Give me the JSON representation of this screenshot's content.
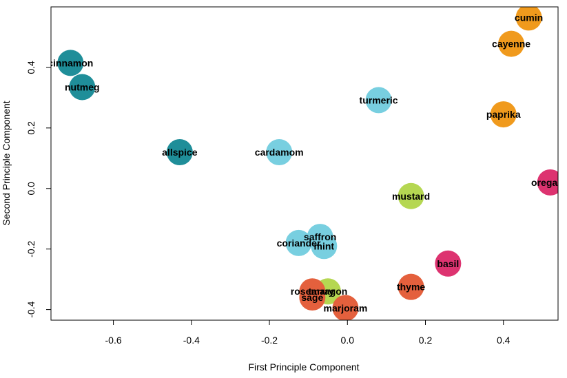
{
  "chart_data": {
    "type": "scatter",
    "title": "",
    "xlabel": "First Principle Component",
    "ylabel": "Second Principle Component",
    "xlim": [
      -0.76,
      0.54
    ],
    "ylim": [
      -0.435,
      0.6
    ],
    "xticks": [
      -0.6,
      -0.4,
      -0.2,
      0.0,
      0.2,
      0.4
    ],
    "xtick_labels": [
      "-0.6",
      "-0.4",
      "-0.2",
      "0.0",
      "0.2",
      "0.4"
    ],
    "yticks": [
      -0.4,
      -0.2,
      0.0,
      0.2,
      0.4
    ],
    "ytick_labels": [
      "-0.4",
      "-0.2",
      "0.0",
      "0.2",
      "0.4"
    ],
    "grid": false,
    "legend": "none",
    "colors": {
      "teal": "#1F8E99",
      "lightblue": "#78CFE0",
      "orange": "#F09A1D",
      "lime": "#B5D752",
      "red": "#E4603D",
      "crimson": "#DD3370"
    },
    "points": [
      {
        "name": "cumin",
        "x": 0.465,
        "y": 0.565,
        "color": "#F09A1D"
      },
      {
        "name": "cayenne",
        "x": 0.42,
        "y": 0.478,
        "color": "#F09A1D"
      },
      {
        "name": "paprika",
        "x": 0.4,
        "y": 0.245,
        "color": "#F09A1D"
      },
      {
        "name": "cinnamon",
        "x": -0.71,
        "y": 0.415,
        "color": "#1F8E99"
      },
      {
        "name": "nutmeg",
        "x": -0.68,
        "y": 0.335,
        "color": "#1F8E99"
      },
      {
        "name": "allspice",
        "x": -0.43,
        "y": 0.12,
        "color": "#1F8E99"
      },
      {
        "name": "turmeric",
        "x": 0.08,
        "y": 0.292,
        "color": "#78CFE0"
      },
      {
        "name": "cardamom",
        "x": -0.175,
        "y": 0.12,
        "color": "#78CFE0"
      },
      {
        "name": "saffron",
        "x": -0.07,
        "y": -0.16,
        "color": "#78CFE0"
      },
      {
        "name": "coriander",
        "x": -0.125,
        "y": -0.18,
        "color": "#78CFE0"
      },
      {
        "name": "mint",
        "x": -0.06,
        "y": -0.19,
        "color": "#78CFE0"
      },
      {
        "name": "oregano",
        "x": 0.52,
        "y": 0.02,
        "color": "#DD3370"
      },
      {
        "name": "basil",
        "x": 0.258,
        "y": -0.248,
        "color": "#DD3370"
      },
      {
        "name": "mustard",
        "x": 0.163,
        "y": -0.025,
        "color": "#B5D752"
      },
      {
        "name": "tarragon",
        "x": -0.05,
        "y": -0.34,
        "color": "#B5D752"
      },
      {
        "name": "thyme",
        "x": 0.163,
        "y": -0.325,
        "color": "#E4603D"
      },
      {
        "name": "rosemary",
        "x": -0.09,
        "y": -0.34,
        "color": "#E4603D"
      },
      {
        "name": "sage",
        "x": -0.09,
        "y": -0.36,
        "color": "#E4603D"
      },
      {
        "name": "marjoram",
        "x": -0.005,
        "y": -0.395,
        "color": "#E4603D"
      }
    ]
  }
}
